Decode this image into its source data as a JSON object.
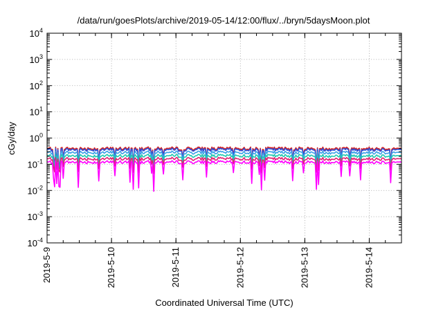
{
  "chart_data": {
    "type": "line",
    "title": "/data/run/goesPlots/archive/2019-05-14/12:00/flux/../bryn/5daysMoon.plot",
    "xlabel": "Coordinated Universal Time (UTC)",
    "ylabel": "cGy/day",
    "yscale": "log",
    "ylim": [
      0.0001,
      10000
    ],
    "xlim": [
      "2019-05-09T00:00",
      "2019-05-14T12:00"
    ],
    "grid": true,
    "x_ticks": [
      "2019-5-9",
      "2019-5-10",
      "2019-5-11",
      "2019-5-12",
      "2019-5-13",
      "2019-5-14"
    ],
    "y_ticks": [
      {
        "base": "10",
        "exp": "-4"
      },
      {
        "base": "10",
        "exp": "-3"
      },
      {
        "base": "10",
        "exp": "-2"
      },
      {
        "base": "10",
        "exp": "-1"
      },
      {
        "base": "10",
        "exp": "0"
      },
      {
        "base": "10",
        "exp": "1"
      },
      {
        "base": "10",
        "exp": "2"
      },
      {
        "base": "10",
        "exp": "3"
      },
      {
        "base": "10",
        "exp": "4"
      }
    ],
    "series": [
      {
        "color": "#d62020",
        "level": 0.4,
        "dip_depth": 1.0
      },
      {
        "color": "#2a4fd8",
        "level": 0.36,
        "dip_depth": 1.0
      },
      {
        "color": "#3aa0e8",
        "level": 0.28,
        "dip_depth": 0.9
      },
      {
        "color": "#20c8b0",
        "level": 0.21,
        "dip_depth": 0.8
      },
      {
        "color": "#e02070",
        "level": 0.16,
        "dip_depth": 0.8
      },
      {
        "color": "#ff00ff",
        "level": 0.12,
        "dip_depth": 1.6
      }
    ]
  }
}
